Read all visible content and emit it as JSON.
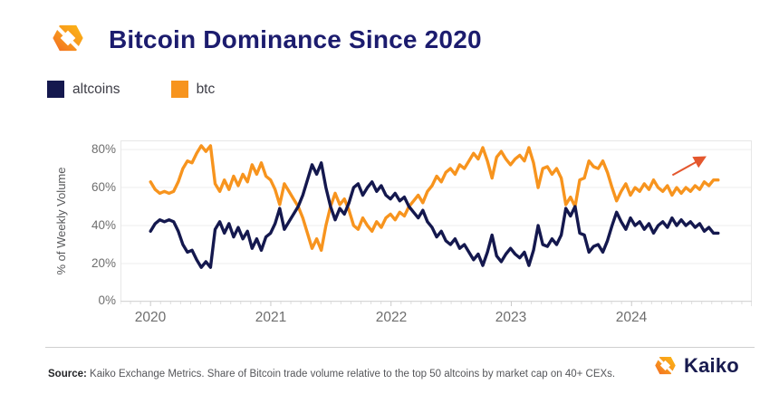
{
  "header": {
    "title": "Bitcoin Dominance Since 2020"
  },
  "legend": [
    {
      "label": "altcoins",
      "color": "#14184E"
    },
    {
      "label": "btc",
      "color": "#F7941E"
    }
  ],
  "chart_data": {
    "type": "line",
    "title": "Bitcoin Dominance Since 2020",
    "ylabel": "% of Weekly Volume",
    "y_ticks": [
      "0%",
      "20%",
      "40%",
      "60%",
      "80%"
    ],
    "y_tick_values": [
      0,
      20,
      40,
      60,
      80
    ],
    "x_ticks": [
      "2020",
      "2021",
      "2022",
      "2023",
      "2024"
    ],
    "x_tick_values": [
      2020,
      2021,
      2022,
      2023,
      2024
    ],
    "xlim": [
      2019.75,
      2025.0
    ],
    "ylim": [
      0,
      84.8
    ],
    "x_start": 2020.0,
    "x_end": 2024.72,
    "grid": "horizontal",
    "legend_position": "top-left",
    "unit": "% of weekly volume",
    "series": [
      {
        "name": "btc",
        "color": "#F7941E",
        "values": [
          63,
          59,
          57,
          58,
          57,
          58,
          63,
          70,
          74,
          73,
          78,
          82,
          79,
          82,
          62,
          58,
          64,
          59,
          66,
          61,
          67,
          63,
          72,
          67,
          73,
          66,
          64,
          59,
          51,
          62,
          58,
          54,
          50,
          44,
          36,
          28,
          33,
          27,
          40,
          50,
          57,
          51,
          54,
          48,
          40,
          38,
          44,
          40,
          37,
          42,
          39,
          44,
          46,
          43,
          47,
          45,
          50,
          53,
          56,
          52,
          58,
          61,
          66,
          63,
          68,
          70,
          67,
          72,
          70,
          74,
          78,
          75,
          81,
          74,
          65,
          76,
          79,
          75,
          72,
          75,
          77,
          74,
          81,
          73,
          60,
          70,
          71,
          67,
          70,
          65,
          51,
          55,
          50,
          64,
          65,
          74,
          71,
          70,
          74,
          68,
          60,
          53,
          58,
          62,
          56,
          60,
          58,
          62,
          59,
          64,
          60,
          58,
          61,
          56,
          60,
          57,
          60,
          58,
          61,
          59,
          63,
          61,
          64,
          64
        ]
      },
      {
        "name": "altcoins",
        "color": "#14184E",
        "values": [
          37,
          41,
          43,
          42,
          43,
          42,
          37,
          30,
          26,
          27,
          22,
          18,
          21,
          18,
          38,
          42,
          36,
          41,
          34,
          39,
          33,
          37,
          28,
          33,
          27,
          34,
          36,
          41,
          49,
          38,
          42,
          46,
          50,
          56,
          64,
          72,
          67,
          73,
          60,
          50,
          43,
          49,
          46,
          52,
          60,
          62,
          56,
          60,
          63,
          58,
          61,
          56,
          54,
          57,
          53,
          55,
          50,
          47,
          44,
          48,
          42,
          39,
          34,
          37,
          32,
          30,
          33,
          28,
          30,
          26,
          22,
          25,
          19,
          26,
          35,
          24,
          21,
          25,
          28,
          25,
          23,
          26,
          19,
          27,
          40,
          30,
          29,
          33,
          30,
          35,
          49,
          45,
          50,
          36,
          35,
          26,
          29,
          30,
          26,
          32,
          40,
          47,
          42,
          38,
          44,
          40,
          42,
          38,
          41,
          36,
          40,
          42,
          39,
          44,
          40,
          43,
          40,
          42,
          39,
          41,
          37,
          39,
          36,
          36
        ]
      }
    ],
    "annotation_arrow": {
      "color": "#E4572E",
      "from": {
        "x": 2024.34,
        "y": 66.5
      },
      "to": {
        "x": 2024.61,
        "y": 76
      }
    }
  },
  "footer": {
    "source_label": "Source:",
    "source_text": "Kaiko Exchange Metrics. Share of Bitcoin trade volume relative to the top 50 altcoins by market cap on 40+ CEXs.",
    "brand": "Kaiko"
  }
}
